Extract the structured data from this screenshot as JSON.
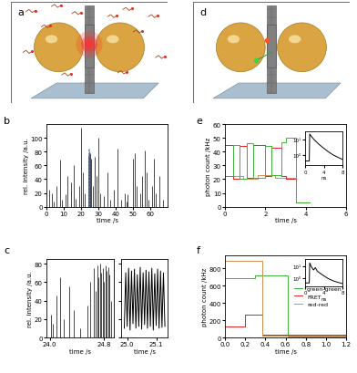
{
  "panel_labels": [
    "a",
    "b",
    "c",
    "d",
    "e",
    "f"
  ],
  "chart_data": [
    {
      "type": "spike",
      "xlabel": "time /s",
      "ylabel": "rel. intensity /a.u.",
      "color": "#000000",
      "x": [
        1.5,
        3,
        4,
        6,
        8,
        9,
        11,
        12,
        14,
        16,
        17,
        19,
        20,
        21,
        22,
        24,
        24.8,
        25.1,
        26,
        27,
        28,
        29,
        30,
        31,
        33,
        35,
        37,
        39,
        41,
        43,
        45,
        46,
        47,
        50,
        51,
        52,
        54,
        55,
        57,
        58,
        59,
        61,
        62,
        63,
        65,
        67
      ],
      "values": [
        25,
        20,
        8,
        30,
        68,
        10,
        18,
        45,
        35,
        60,
        12,
        30,
        115,
        50,
        20,
        75,
        80,
        78,
        70,
        30,
        72,
        45,
        100,
        20,
        15,
        50,
        10,
        25,
        85,
        10,
        20,
        8,
        18,
        70,
        78,
        30,
        20,
        45,
        82,
        50,
        10,
        30,
        70,
        20,
        45,
        10
      ],
      "xlim": [
        0,
        70
      ],
      "xticks": [
        0,
        10,
        20,
        30,
        40,
        50,
        60
      ],
      "ylim": [
        0,
        120
      ],
      "yticks": [
        0,
        20,
        40,
        60,
        80,
        100
      ]
    },
    {
      "type": "spike",
      "xlabel": "time /s",
      "ylabel": "rel. intensity /a.u.",
      "color": "#000000",
      "x": [
        24.02,
        24.05,
        24.1,
        24.15,
        24.2,
        24.28,
        24.35,
        24.45,
        24.55,
        24.6,
        24.65,
        24.68,
        24.7,
        24.72,
        24.74,
        24.76,
        24.78,
        24.8,
        24.82,
        24.84,
        24.86,
        24.88,
        24.9
      ],
      "values": [
        25,
        15,
        45,
        65,
        20,
        55,
        30,
        10,
        35,
        60,
        75,
        50,
        78,
        65,
        80,
        70,
        75,
        60,
        78,
        72,
        76,
        68,
        40
      ],
      "xlim": [
        23.95,
        24.95
      ],
      "xticks": [
        {
          "value": 24.0,
          "label": "24.0"
        },
        24.8
      ],
      "ylim": [
        0,
        85
      ],
      "yticks": [
        0,
        20,
        40,
        60,
        80
      ]
    },
    {
      "type": "line",
      "xlabel": "time /s",
      "color": "#000000",
      "tick_labels": "x",
      "x": [
        24.99,
        24.995,
        25.0,
        25.005,
        25.01,
        25.015,
        25.02,
        25.025,
        25.03,
        25.035,
        25.04,
        25.045,
        25.05,
        25.055,
        25.06,
        25.065,
        25.07,
        25.075,
        25.08,
        25.085,
        25.09,
        25.095,
        25.1,
        25.105,
        25.11,
        25.115,
        25.12,
        25.125,
        25.13
      ],
      "values": [
        10,
        70,
        12,
        75,
        8,
        72,
        15,
        74,
        10,
        68,
        12,
        76,
        9,
        70,
        14,
        73,
        10,
        71,
        12,
        75,
        8,
        69,
        13,
        74,
        10,
        72,
        11,
        70,
        12
      ],
      "xlim": [
        24.98,
        25.14
      ],
      "xticks": [
        {
          "value": 25.0,
          "label": "25.0"
        },
        25.1
      ],
      "ylim": [
        0,
        85
      ],
      "yticks": [
        0,
        20,
        40,
        60,
        80
      ]
    },
    {
      "type": "line",
      "line_style": "steps",
      "xlabel": "time /s",
      "ylabel": "photon count /kHz",
      "series": [
        {
          "color": "#d09050",
          "x": [
            0,
            0.9,
            1.6,
            2.5,
            3.5,
            4.2
          ],
          "values": [
            22,
            20,
            23,
            21,
            3,
            3
          ]
        },
        {
          "color": "#e02020",
          "x": [
            0,
            0.4,
            0.7,
            1.1,
            1.4,
            2.0,
            2.3,
            2.8,
            3.0,
            3.5,
            4.2
          ],
          "values": [
            45,
            20,
            44,
            21,
            45,
            22,
            43,
            22,
            20,
            3,
            3
          ]
        },
        {
          "color": "#3cb43c",
          "x": [
            0,
            0.4,
            0.7,
            1.1,
            1.4,
            2.0,
            2.3,
            2.8,
            3.0,
            3.5,
            4.2
          ],
          "values": [
            22,
            45,
            20,
            46,
            21,
            44,
            23,
            47,
            50,
            3,
            3
          ]
        }
      ],
      "xlim": [
        0,
        6
      ],
      "xticks": [
        0,
        2,
        4,
        6
      ],
      "ylim": [
        0,
        60
      ],
      "yticks": [
        0,
        10,
        20,
        30,
        40,
        50,
        60
      ]
    },
    {
      "type": "line",
      "log": "y",
      "color": "#000000",
      "xlabel": "ns",
      "x": [
        0,
        0.9,
        1.0,
        1.2,
        1.6,
        2,
        3,
        4,
        5,
        6,
        7,
        8
      ],
      "values": [
        0.4,
        0.4,
        25,
        20,
        14,
        10,
        5,
        2.8,
        1.6,
        1.0,
        0.7,
        0.5
      ],
      "xlim": [
        0,
        8
      ],
      "xticks": [
        0,
        4,
        8
      ],
      "ylim": [
        0.2,
        40
      ],
      "yticks": [
        {
          "value": 1,
          "label": "10⁰"
        },
        {
          "value": 10,
          "label": "10¹"
        }
      ]
    },
    {
      "type": "line",
      "line_style": "steps",
      "xlabel": "time /s",
      "ylabel": "photon count /kHz",
      "legend": "center right",
      "series": [
        {
          "name": "green-green",
          "color": "#3cb43c",
          "x": [
            0,
            0.3,
            0.62,
            1.2
          ],
          "values": [
            690,
            720,
            10,
            10
          ]
        },
        {
          "name": "FRET",
          "color": "#e02020",
          "x": [
            0,
            0.2,
            0.37,
            1.2
          ],
          "values": [
            130,
            260,
            30,
            30
          ]
        },
        {
          "name": "red-red",
          "color": "#d09050",
          "x": [
            0,
            0.37,
            1.2
          ],
          "values": [
            880,
            20,
            20
          ]
        }
      ],
      "xlim": [
        0,
        1.2
      ],
      "xticks": [
        {
          "value": 0,
          "label": "0.0"
        },
        0.2,
        0.4,
        0.6,
        0.8,
        1.0,
        1.2
      ],
      "ylim": [
        0,
        950
      ],
      "yticks": [
        0,
        200,
        400,
        600,
        800
      ]
    },
    {
      "type": "line",
      "log": "y",
      "color": "#000000",
      "xlabel": "ns",
      "x": [
        0,
        0.9,
        1.0,
        1.3,
        1.8,
        2.2,
        2.6,
        3,
        4,
        5,
        6,
        7,
        8
      ],
      "values": [
        0.4,
        0.4,
        20,
        10,
        5,
        8,
        4,
        3,
        1.6,
        0.9,
        0.6,
        0.45,
        0.35
      ],
      "xlim": [
        0,
        8
      ],
      "xticks": [
        0,
        4,
        8
      ],
      "ylim": [
        0.2,
        40
      ],
      "yticks": [
        {
          "value": 1,
          "label": "10⁰"
        },
        {
          "value": 10,
          "label": "10¹"
        }
      ]
    }
  ]
}
